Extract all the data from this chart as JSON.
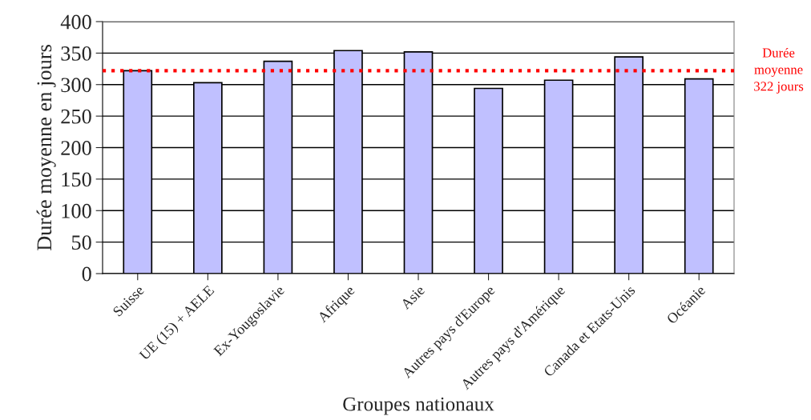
{
  "chart_data": {
    "type": "bar",
    "categories": [
      "Suisse",
      "UE (15) + AELE",
      "Ex-Yougoslavie",
      "Afrique",
      "Asie",
      "Autres pays d'Europe",
      "Autres pays d'Amérique",
      "Canada et Etats-Unis",
      "Océanie"
    ],
    "values": [
      322,
      303,
      337,
      354,
      352,
      294,
      307,
      344,
      309
    ],
    "color": "#c0c0ff",
    "xlabel": "Groupes nationaux",
    "ylabel": "Durée moyenne en jours",
    "ylim": [
      0,
      400
    ],
    "yticks": [
      0,
      50,
      100,
      150,
      200,
      250,
      300,
      350,
      400
    ],
    "grid": "y",
    "legend": false,
    "ref_lines": [
      {
        "axis": "y",
        "value": 322,
        "label": "Durée\nmoyenne\n322 jours",
        "color": "#ff0000",
        "line_style": "dotted"
      }
    ]
  }
}
